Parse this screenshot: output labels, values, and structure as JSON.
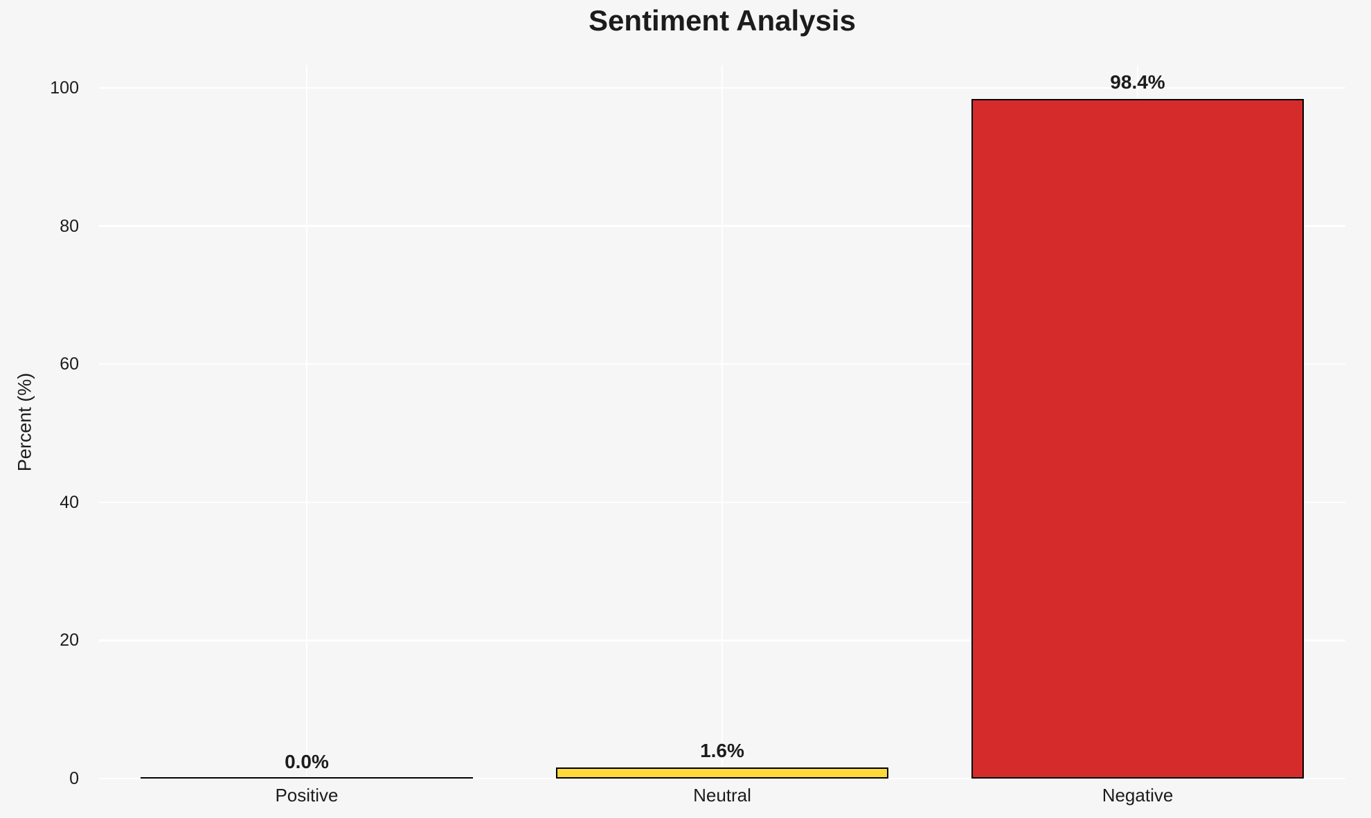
{
  "chart_data": {
    "type": "bar",
    "title": "Sentiment Analysis",
    "xlabel": "",
    "ylabel": "Percent (%)",
    "categories": [
      "Positive",
      "Neutral",
      "Negative"
    ],
    "values": [
      0.0,
      1.6,
      98.4
    ],
    "value_labels": [
      "0.0%",
      "1.6%",
      "98.4%"
    ],
    "bar_colors": [
      null,
      "#fdd93a",
      "#d62b2b"
    ],
    "bar_edge_color": "#000000",
    "yticks": [
      0,
      20,
      40,
      60,
      80,
      100
    ],
    "ylim": [
      0,
      103.3
    ],
    "grid": true,
    "gridline_color": "#ffffff",
    "background_color": "#f6f6f7",
    "text_color": "#1c1c1c",
    "legend": "none"
  }
}
